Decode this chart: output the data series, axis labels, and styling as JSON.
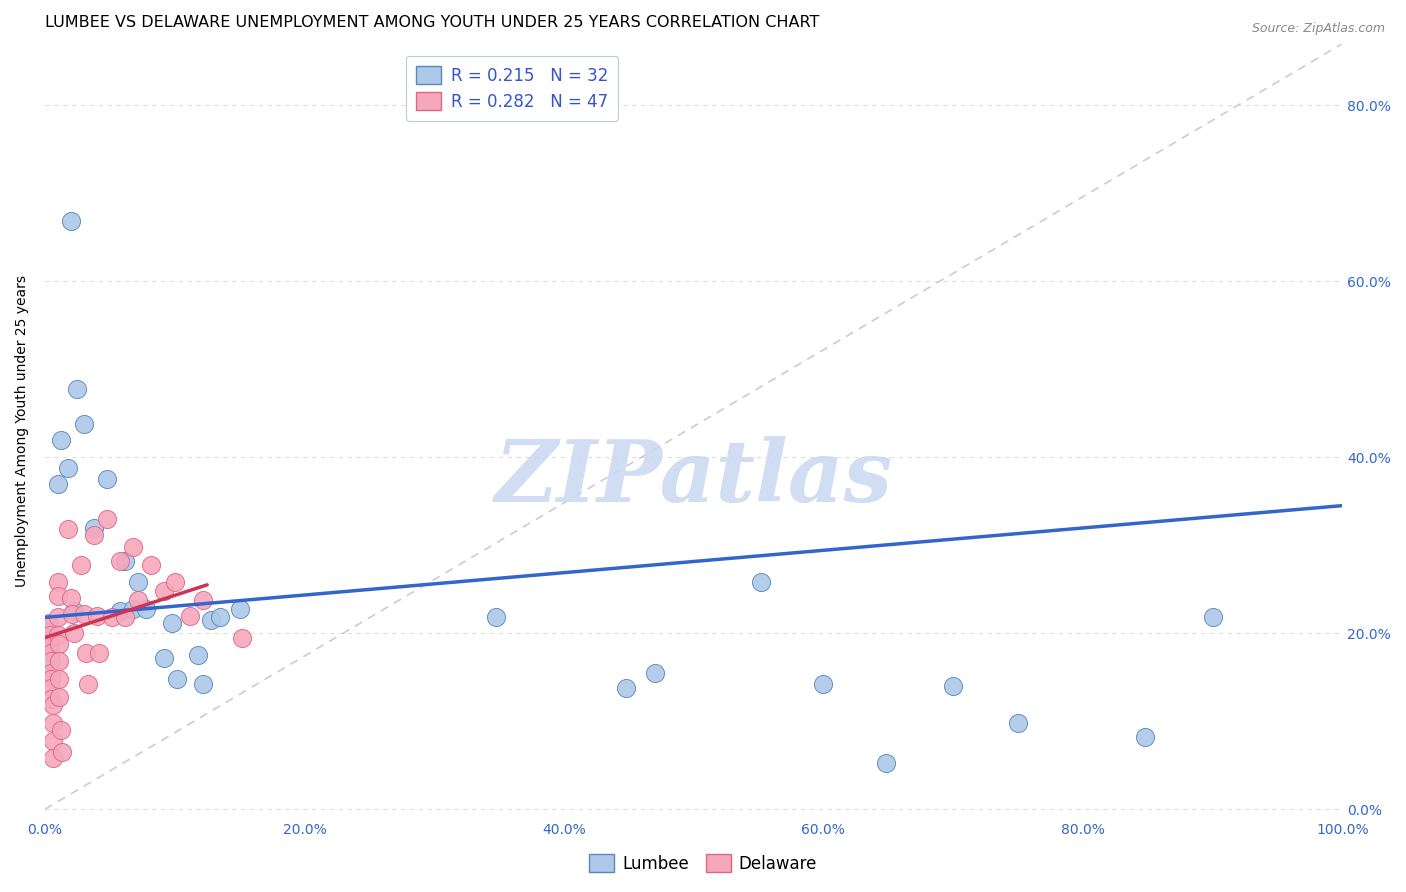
{
  "title": "LUMBEE VS DELAWARE UNEMPLOYMENT AMONG YOUTH UNDER 25 YEARS CORRELATION CHART",
  "source": "Source: ZipAtlas.com",
  "ylabel": "Unemployment Among Youth under 25 years",
  "xlabel": "",
  "xlim": [
    0.0,
    1.0
  ],
  "ylim": [
    -0.01,
    0.87
  ],
  "xticks": [
    0.0,
    0.2,
    0.4,
    0.6,
    0.8,
    1.0
  ],
  "yticks": [
    0.0,
    0.2,
    0.4,
    0.6,
    0.8
  ],
  "xtick_labels": [
    "0.0%",
    "20.0%",
    "40.0%",
    "60.0%",
    "80.0%",
    "100.0%"
  ],
  "ytick_labels_right": [
    "0.0%",
    "20.0%",
    "40.0%",
    "60.0%",
    "80.0%"
  ],
  "lumbee_color": "#adc8e8",
  "delaware_color": "#f5a8bc",
  "lumbee_edge": "#5588bb",
  "delaware_edge": "#dd6688",
  "trend_blue": "#3366cc",
  "trend_pink": "#cc3355",
  "diag_color": "#cccccc",
  "grid_color": "#dddddd",
  "watermark": "ZIPatlas",
  "watermark_color": "#c8d8f0",
  "title_fontsize": 11.5,
  "axis_label_fontsize": 10,
  "tick_fontsize": 10,
  "tick_color_blue": "#3366cc",
  "background_color": "#ffffff",
  "lumbee_x": [
    0.018,
    0.012,
    0.01,
    0.03,
    0.048,
    0.038,
    0.062,
    0.058,
    0.068,
    0.072,
    0.078,
    0.092,
    0.098,
    0.102,
    0.118,
    0.122,
    0.128,
    0.135,
    0.15,
    0.025,
    0.02,
    0.022,
    0.348,
    0.448,
    0.47,
    0.552,
    0.6,
    0.648,
    0.7,
    0.75,
    0.848,
    0.9
  ],
  "lumbee_y": [
    0.388,
    0.42,
    0.37,
    0.438,
    0.375,
    0.32,
    0.282,
    0.225,
    0.228,
    0.258,
    0.228,
    0.172,
    0.212,
    0.148,
    0.175,
    0.142,
    0.215,
    0.218,
    0.228,
    0.478,
    0.668,
    0.225,
    0.218,
    0.138,
    0.155,
    0.258,
    0.142,
    0.052,
    0.14,
    0.098,
    0.082,
    0.218
  ],
  "delaware_x": [
    0.003,
    0.003,
    0.004,
    0.004,
    0.005,
    0.005,
    0.005,
    0.005,
    0.005,
    0.005,
    0.006,
    0.006,
    0.006,
    0.006,
    0.01,
    0.01,
    0.01,
    0.01,
    0.011,
    0.011,
    0.011,
    0.011,
    0.012,
    0.013,
    0.018,
    0.02,
    0.021,
    0.022,
    0.028,
    0.03,
    0.032,
    0.033,
    0.038,
    0.04,
    0.042,
    0.048,
    0.052,
    0.058,
    0.062,
    0.068,
    0.072,
    0.082,
    0.092,
    0.1,
    0.112,
    0.122,
    0.152
  ],
  "delaware_y": [
    0.212,
    0.208,
    0.198,
    0.188,
    0.178,
    0.168,
    0.155,
    0.148,
    0.138,
    0.125,
    0.118,
    0.098,
    0.078,
    0.058,
    0.258,
    0.242,
    0.218,
    0.198,
    0.188,
    0.168,
    0.148,
    0.128,
    0.09,
    0.065,
    0.318,
    0.24,
    0.222,
    0.2,
    0.278,
    0.222,
    0.178,
    0.142,
    0.312,
    0.22,
    0.178,
    0.33,
    0.218,
    0.282,
    0.218,
    0.298,
    0.238,
    0.278,
    0.248,
    0.258,
    0.22,
    0.238,
    0.195
  ],
  "lumbee_trend_x": [
    0.0,
    1.0
  ],
  "lumbee_trend_y": [
    0.218,
    0.345
  ],
  "delaware_trend_x": [
    0.0,
    0.125
  ],
  "delaware_trend_y": [
    0.195,
    0.255
  ]
}
